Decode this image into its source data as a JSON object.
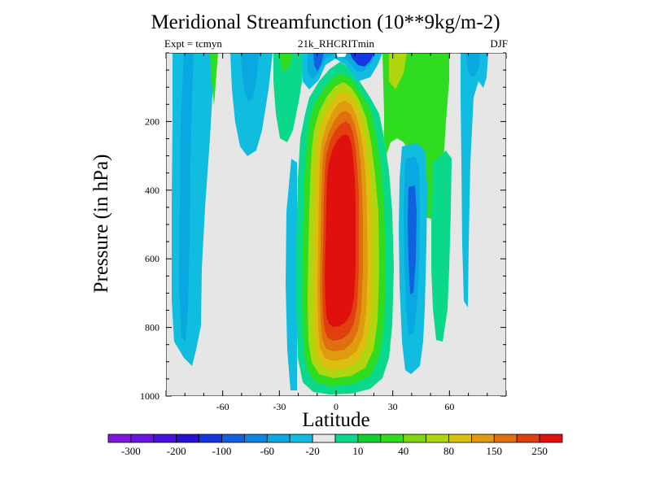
{
  "chart_data": {
    "type": "contour",
    "title": "Meridional Streamfunction (10**9kg/m-2)",
    "subtitle_left": "Expt = tcmyn",
    "subtitle_center": "21k_RHCRITmin",
    "subtitle_right": "DJF",
    "xlabel": "Latitude",
    "ylabel": "Pressure (in hPa)",
    "xlim": [
      -90,
      90
    ],
    "ylim": [
      1000,
      0
    ],
    "x_ticks": [
      -60,
      -30,
      0,
      30,
      60
    ],
    "x_tick_labels": [
      "-60",
      "-30",
      "0",
      "30",
      "60"
    ],
    "y_ticks": [
      200,
      400,
      600,
      800,
      1000
    ],
    "y_tick_labels": [
      "200",
      "400",
      "600",
      "800",
      "1000"
    ],
    "colorbar": {
      "colors": [
        "#7f16e0",
        "#6a14e0",
        "#4a10e0",
        "#2a10d0",
        "#1636e0",
        "#1060e0",
        "#0c86e0",
        "#0aa8e0",
        "#10bce0",
        "#e6e6e6",
        "#0ad88a",
        "#13cf30",
        "#2fdc20",
        "#7fd60f",
        "#b0d60f",
        "#dcc00f",
        "#e09a0f",
        "#e0700f",
        "#e0400f",
        "#e0100f"
      ],
      "labels": [
        {
          "text": "-300",
          "after": 1
        },
        {
          "text": "-200",
          "after": 3
        },
        {
          "text": "-100",
          "after": 5
        },
        {
          "text": "-60",
          "after": 7
        },
        {
          "text": "-20",
          "after": 9
        },
        {
          "text": "10",
          "after": 11
        },
        {
          "text": "40",
          "after": 13
        },
        {
          "text": "80",
          "after": 15
        },
        {
          "text": "150",
          "after": 17
        },
        {
          "text": "250",
          "after": 19
        }
      ]
    },
    "field": {
      "background_level": 10,
      "regions": [
        {
          "name": "nh-hadley-cell",
          "lat_range": [
            -16,
            18
          ],
          "p_range": [
            20,
            1000
          ],
          "max_value": 250,
          "levels": [
            12,
            13,
            14,
            15,
            16,
            17,
            18,
            19,
            20
          ]
        },
        {
          "name": "sh-polar-cell",
          "lat_range": [
            -82,
            -60
          ],
          "p_range": [
            20,
            920
          ],
          "min_value": -20
        },
        {
          "name": "sh-midlat-cell",
          "lat_range": [
            -35,
            -22
          ],
          "p_range": [
            20,
            340
          ],
          "min_value": -20
        },
        {
          "name": "upper-negative-cell",
          "lat_range": [
            -10,
            25
          ],
          "p_range": [
            10,
            80
          ],
          "min_value": -100
        },
        {
          "name": "sh-ferrel-cell",
          "lat_range": [
            27,
            42
          ],
          "p_range": [
            150,
            940
          ],
          "min_value": -60
        },
        {
          "name": "sh-subtropical-positive",
          "lat_range": [
            18,
            63
          ],
          "p_range": [
            20,
            780
          ],
          "max_value": 40
        }
      ]
    }
  }
}
